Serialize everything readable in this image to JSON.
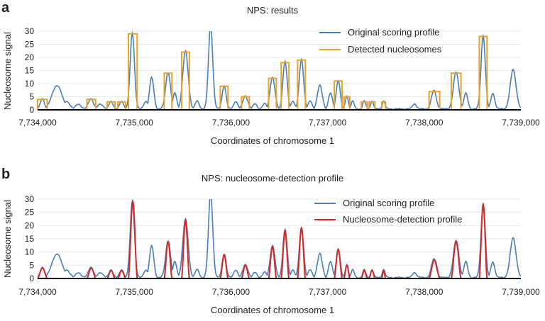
{
  "colors": {
    "original": "#4a7fb5",
    "detected": "#e8a227",
    "detection_profile": "#d62728",
    "baseline": "#000000",
    "grid": "#e6e6e6"
  },
  "chart_data": [
    {
      "type": "line",
      "panel_label": "a",
      "title": "NPS: results",
      "xlabel": "Coordinates of chromosome 1",
      "ylabel": "Nucleosome signal",
      "xlim": [
        7734000,
        7739000
      ],
      "ylim": [
        0,
        30
      ],
      "x_ticks": [
        7734000,
        7735000,
        7736000,
        7737000,
        7738000,
        7739000
      ],
      "x_tick_labels": [
        "7,734,000",
        "7,735,000",
        "7,736,000",
        "7,737,000",
        "7,738,000",
        "7,739,000"
      ],
      "y_ticks": [
        0,
        5,
        10,
        15,
        20,
        25,
        30
      ],
      "grid": "horizontal",
      "legend_position": "top-right",
      "series": [
        {
          "name": "Original scoring profile",
          "kind": "profile",
          "color_key": "original",
          "peaks": [
            {
              "c": 7734050,
              "h": 4,
              "w": 20
            },
            {
              "c": 7734200,
              "h": 9,
              "w": 50
            },
            {
              "c": 7734300,
              "h": 3,
              "w": 30
            },
            {
              "c": 7734420,
              "h": 2,
              "w": 25
            },
            {
              "c": 7734550,
              "h": 4,
              "w": 25
            },
            {
              "c": 7734650,
              "h": 2,
              "w": 25
            },
            {
              "c": 7734760,
              "h": 3,
              "w": 20
            },
            {
              "c": 7734870,
              "h": 3,
              "w": 20
            },
            {
              "c": 7734980,
              "h": 29,
              "w": 22
            },
            {
              "c": 7735120,
              "h": 3,
              "w": 20
            },
            {
              "c": 7735180,
              "h": 12,
              "w": 22
            },
            {
              "c": 7735350,
              "h": 14,
              "w": 25
            },
            {
              "c": 7735420,
              "h": 6,
              "w": 20
            },
            {
              "c": 7735530,
              "h": 22,
              "w": 28
            },
            {
              "c": 7735650,
              "h": 3,
              "w": 20
            },
            {
              "c": 7735790,
              "h": 32,
              "w": 22
            },
            {
              "c": 7735930,
              "h": 9,
              "w": 20
            },
            {
              "c": 7736050,
              "h": 3,
              "w": 20
            },
            {
              "c": 7736150,
              "h": 5,
              "w": 25
            },
            {
              "c": 7736250,
              "h": 2,
              "w": 20
            },
            {
              "c": 7736350,
              "h": 2,
              "w": 20
            },
            {
              "c": 7736430,
              "h": 12,
              "w": 25
            },
            {
              "c": 7736560,
              "h": 18,
              "w": 22
            },
            {
              "c": 7736640,
              "h": 3,
              "w": 20
            },
            {
              "c": 7736730,
              "h": 19,
              "w": 22
            },
            {
              "c": 7736820,
              "h": 3,
              "w": 20
            },
            {
              "c": 7736920,
              "h": 9,
              "w": 25
            },
            {
              "c": 7737030,
              "h": 6,
              "w": 20
            },
            {
              "c": 7737110,
              "h": 11,
              "w": 20
            },
            {
              "c": 7737200,
              "h": 5,
              "w": 15
            },
            {
              "c": 7737260,
              "h": 3,
              "w": 15
            },
            {
              "c": 7737380,
              "h": 3,
              "w": 15
            },
            {
              "c": 7737460,
              "h": 3,
              "w": 15
            },
            {
              "c": 7737580,
              "h": 3,
              "w": 15
            },
            {
              "c": 7737900,
              "h": 2,
              "w": 20
            },
            {
              "c": 7738100,
              "h": 7,
              "w": 25
            },
            {
              "c": 7738330,
              "h": 14,
              "w": 28
            },
            {
              "c": 7738430,
              "h": 6,
              "w": 20
            },
            {
              "c": 7738610,
              "h": 28,
              "w": 22
            },
            {
              "c": 7738710,
              "h": 6,
              "w": 20
            },
            {
              "c": 7738920,
              "h": 15,
              "w": 30
            }
          ]
        },
        {
          "name": "Detected nucleosomes",
          "kind": "boxes",
          "color_key": "detected",
          "boxes": [
            {
              "x0": 7734000,
              "x1": 7734100,
              "h": 4
            },
            {
              "x0": 7734510,
              "x1": 7734600,
              "h": 4
            },
            {
              "x0": 7734720,
              "x1": 7734800,
              "h": 3
            },
            {
              "x0": 7734830,
              "x1": 7734910,
              "h": 3
            },
            {
              "x0": 7734940,
              "x1": 7735030,
              "h": 29
            },
            {
              "x0": 7735310,
              "x1": 7735390,
              "h": 14
            },
            {
              "x0": 7735490,
              "x1": 7735570,
              "h": 22
            },
            {
              "x0": 7735890,
              "x1": 7735970,
              "h": 9
            },
            {
              "x0": 7736110,
              "x1": 7736190,
              "h": 5
            },
            {
              "x0": 7736390,
              "x1": 7736470,
              "h": 12
            },
            {
              "x0": 7736520,
              "x1": 7736600,
              "h": 18
            },
            {
              "x0": 7736690,
              "x1": 7736770,
              "h": 19
            },
            {
              "x0": 7737070,
              "x1": 7737150,
              "h": 11
            },
            {
              "x0": 7737170,
              "x1": 7737230,
              "h": 5
            },
            {
              "x0": 7737350,
              "x1": 7737410,
              "h": 3
            },
            {
              "x0": 7737430,
              "x1": 7737490,
              "h": 3
            },
            {
              "x0": 7737560,
              "x1": 7737600,
              "h": 3
            },
            {
              "x0": 7738050,
              "x1": 7738160,
              "h": 7
            },
            {
              "x0": 7738280,
              "x1": 7738380,
              "h": 14
            },
            {
              "x0": 7738570,
              "x1": 7738650,
              "h": 28
            }
          ]
        }
      ]
    },
    {
      "type": "line",
      "panel_label": "b",
      "title": "NPS: nucleosome-detection profile",
      "xlabel": "Coordinates of chromosome 1",
      "ylabel": "Nucleosome signal",
      "xlim": [
        7734000,
        7739000
      ],
      "ylim": [
        0,
        30
      ],
      "x_ticks": [
        7734000,
        7735000,
        7736000,
        7737000,
        7738000,
        7739000
      ],
      "x_tick_labels": [
        "7,734,000",
        "7,735,000",
        "7,736,000",
        "7,737,000",
        "7,738,000",
        "7,739,000"
      ],
      "y_ticks": [
        0,
        5,
        10,
        15,
        20,
        25,
        30
      ],
      "grid": "horizontal",
      "legend_position": "top-right",
      "series": [
        {
          "name": "Original scoring profile",
          "kind": "profile",
          "color_key": "original",
          "peaks": [
            {
              "c": 7734050,
              "h": 4,
              "w": 20
            },
            {
              "c": 7734200,
              "h": 9,
              "w": 50
            },
            {
              "c": 7734300,
              "h": 3,
              "w": 30
            },
            {
              "c": 7734420,
              "h": 2,
              "w": 25
            },
            {
              "c": 7734550,
              "h": 4,
              "w": 25
            },
            {
              "c": 7734650,
              "h": 2,
              "w": 25
            },
            {
              "c": 7734760,
              "h": 3,
              "w": 20
            },
            {
              "c": 7734870,
              "h": 3,
              "w": 20
            },
            {
              "c": 7734980,
              "h": 29,
              "w": 22
            },
            {
              "c": 7735120,
              "h": 3,
              "w": 20
            },
            {
              "c": 7735180,
              "h": 12,
              "w": 22
            },
            {
              "c": 7735350,
              "h": 14,
              "w": 25
            },
            {
              "c": 7735420,
              "h": 6,
              "w": 20
            },
            {
              "c": 7735530,
              "h": 22,
              "w": 28
            },
            {
              "c": 7735650,
              "h": 3,
              "w": 20
            },
            {
              "c": 7735790,
              "h": 32,
              "w": 22
            },
            {
              "c": 7735930,
              "h": 9,
              "w": 20
            },
            {
              "c": 7736050,
              "h": 3,
              "w": 20
            },
            {
              "c": 7736150,
              "h": 5,
              "w": 25
            },
            {
              "c": 7736250,
              "h": 2,
              "w": 20
            },
            {
              "c": 7736350,
              "h": 2,
              "w": 20
            },
            {
              "c": 7736430,
              "h": 12,
              "w": 25
            },
            {
              "c": 7736560,
              "h": 18,
              "w": 22
            },
            {
              "c": 7736640,
              "h": 3,
              "w": 20
            },
            {
              "c": 7736730,
              "h": 19,
              "w": 22
            },
            {
              "c": 7736820,
              "h": 3,
              "w": 20
            },
            {
              "c": 7736920,
              "h": 9,
              "w": 25
            },
            {
              "c": 7737030,
              "h": 6,
              "w": 20
            },
            {
              "c": 7737110,
              "h": 11,
              "w": 20
            },
            {
              "c": 7737200,
              "h": 5,
              "w": 15
            },
            {
              "c": 7737260,
              "h": 3,
              "w": 15
            },
            {
              "c": 7737380,
              "h": 3,
              "w": 15
            },
            {
              "c": 7737460,
              "h": 3,
              "w": 15
            },
            {
              "c": 7737580,
              "h": 3,
              "w": 15
            },
            {
              "c": 7737900,
              "h": 2,
              "w": 20
            },
            {
              "c": 7738100,
              "h": 7,
              "w": 25
            },
            {
              "c": 7738330,
              "h": 14,
              "w": 28
            },
            {
              "c": 7738430,
              "h": 6,
              "w": 20
            },
            {
              "c": 7738610,
              "h": 28,
              "w": 22
            },
            {
              "c": 7738710,
              "h": 6,
              "w": 20
            },
            {
              "c": 7738920,
              "h": 15,
              "w": 30
            }
          ]
        },
        {
          "name": "Nucleosome-detection profile",
          "kind": "humps",
          "color_key": "detection_profile",
          "humps": [
            {
              "x0": 7734000,
              "x1": 7734100,
              "h": 4
            },
            {
              "x0": 7734510,
              "x1": 7734600,
              "h": 4
            },
            {
              "x0": 7734720,
              "x1": 7734800,
              "h": 3
            },
            {
              "x0": 7734830,
              "x1": 7734910,
              "h": 3
            },
            {
              "x0": 7734940,
              "x1": 7735030,
              "h": 29
            },
            {
              "x0": 7735310,
              "x1": 7735390,
              "h": 14
            },
            {
              "x0": 7735490,
              "x1": 7735570,
              "h": 22
            },
            {
              "x0": 7735890,
              "x1": 7735970,
              "h": 9
            },
            {
              "x0": 7736110,
              "x1": 7736190,
              "h": 5
            },
            {
              "x0": 7736390,
              "x1": 7736470,
              "h": 12
            },
            {
              "x0": 7736520,
              "x1": 7736600,
              "h": 18
            },
            {
              "x0": 7736690,
              "x1": 7736770,
              "h": 19
            },
            {
              "x0": 7737070,
              "x1": 7737150,
              "h": 11
            },
            {
              "x0": 7737170,
              "x1": 7737230,
              "h": 5
            },
            {
              "x0": 7737350,
              "x1": 7737410,
              "h": 3
            },
            {
              "x0": 7737430,
              "x1": 7737490,
              "h": 3
            },
            {
              "x0": 7737560,
              "x1": 7737600,
              "h": 3
            },
            {
              "x0": 7738050,
              "x1": 7738160,
              "h": 7
            },
            {
              "x0": 7738280,
              "x1": 7738380,
              "h": 14
            },
            {
              "x0": 7738570,
              "x1": 7738650,
              "h": 28
            }
          ]
        }
      ]
    }
  ]
}
